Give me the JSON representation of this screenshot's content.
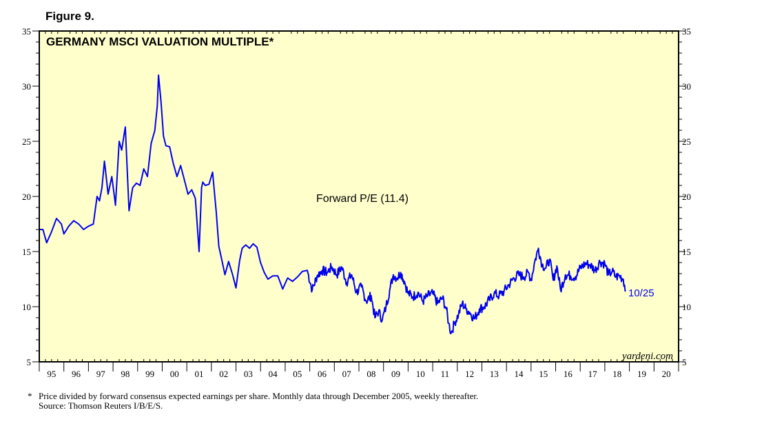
{
  "figure_label": "Figure 9.",
  "footnote": {
    "marker": "*",
    "line1": "Price divided by forward consensus expected earnings per share. Monthly data through December 2005, weekly thereafter.",
    "line2": "Source: Thomson Reuters I/B/E/S."
  },
  "colors": {
    "plot_background": "#ffffcc",
    "series": "#0000ee",
    "frame": "#000000"
  },
  "chart_data": {
    "type": "line",
    "title": "GERMANY MSCI VALUATION MULTIPLE*",
    "series_label": "Forward P/E (11.4)",
    "end_label": "10/25",
    "watermark": "yardeni.com",
    "ylim": [
      5,
      35
    ],
    "y_ticks": [
      5,
      10,
      15,
      20,
      25,
      30,
      35
    ],
    "x_range": [
      1995,
      2021
    ],
    "x_tick_labels": [
      "95",
      "96",
      "97",
      "98",
      "99",
      "00",
      "01",
      "02",
      "03",
      "04",
      "05",
      "06",
      "07",
      "08",
      "09",
      "10",
      "11",
      "12",
      "13",
      "14",
      "15",
      "16",
      "17",
      "18",
      "19",
      "20"
    ],
    "series": [
      {
        "name": "Forward P/E",
        "x": [
          1995.0,
          1995.15,
          1995.3,
          1995.5,
          1995.7,
          1995.9,
          1996.0,
          1996.2,
          1996.4,
          1996.6,
          1996.8,
          1997.0,
          1997.2,
          1997.35,
          1997.45,
          1997.55,
          1997.65,
          1997.8,
          1997.95,
          1998.1,
          1998.25,
          1998.35,
          1998.5,
          1998.65,
          1998.8,
          1998.95,
          1999.1,
          1999.25,
          1999.4,
          1999.55,
          1999.7,
          1999.8,
          1999.85,
          1999.95,
          2000.05,
          2000.15,
          2000.3,
          2000.45,
          2000.6,
          2000.75,
          2000.9,
          2001.05,
          2001.2,
          2001.35,
          2001.5,
          2001.6,
          2001.65,
          2001.75,
          2001.9,
          2002.05,
          2002.2,
          2002.3,
          2002.4,
          2002.55,
          2002.7,
          2002.85,
          2003.0,
          2003.15,
          2003.25,
          2003.4,
          2003.55,
          2003.7,
          2003.85,
          2004.0,
          2004.15,
          2004.3,
          2004.5,
          2004.7,
          2004.9,
          2005.1,
          2005.3,
          2005.5,
          2005.7,
          2005.9,
          2006.1,
          2006.3,
          2006.5,
          2006.7,
          2006.9,
          2007.1,
          2007.3,
          2007.5,
          2007.7,
          2007.9,
          2008.1,
          2008.3,
          2008.5,
          2008.65,
          2008.8,
          2008.95,
          2009.1,
          2009.25,
          2009.4,
          2009.55,
          2009.7,
          2009.85,
          2010.0,
          2010.2,
          2010.4,
          2010.6,
          2010.8,
          2011.0,
          2011.2,
          2011.4,
          2011.55,
          2011.65,
          2011.75,
          2011.9,
          2012.05,
          2012.2,
          2012.35,
          2012.5,
          2012.7,
          2012.9,
          2013.1,
          2013.3,
          2013.5,
          2013.7,
          2013.9,
          2014.1,
          2014.3,
          2014.5,
          2014.7,
          2014.9,
          2015.0,
          2015.15,
          2015.3,
          2015.45,
          2015.6,
          2015.75,
          2015.9,
          2016.05,
          2016.2,
          2016.4,
          2016.6,
          2016.8,
          2017.0,
          2017.2,
          2017.4,
          2017.6,
          2017.8,
          2018.0,
          2018.15,
          2018.3,
          2018.45,
          2018.6,
          2018.75,
          2018.85
        ],
        "values": [
          17.0,
          17.0,
          15.8,
          16.8,
          18.0,
          17.5,
          16.6,
          17.3,
          17.8,
          17.5,
          17.0,
          17.3,
          17.5,
          20.0,
          19.6,
          20.8,
          23.2,
          20.2,
          21.8,
          19.2,
          25.0,
          24.2,
          26.3,
          18.7,
          20.8,
          21.2,
          21.0,
          22.5,
          21.8,
          24.8,
          26.0,
          28.2,
          31.0,
          28.6,
          25.5,
          24.6,
          24.5,
          23.0,
          21.8,
          22.8,
          21.5,
          20.2,
          20.6,
          19.8,
          15.0,
          20.8,
          21.3,
          21.0,
          21.1,
          22.2,
          18.5,
          15.5,
          14.5,
          12.9,
          14.1,
          13.0,
          11.7,
          14.2,
          15.3,
          15.6,
          15.3,
          15.7,
          15.4,
          14.0,
          13.1,
          12.5,
          12.8,
          12.8,
          11.6,
          12.6,
          12.3,
          12.7,
          13.2,
          13.3,
          11.5,
          12.8,
          13.3,
          13.1,
          13.6,
          12.9,
          13.6,
          12.2,
          12.9,
          11.3,
          11.8,
          10.5,
          11.0,
          9.0,
          9.6,
          8.8,
          10.0,
          11.5,
          12.9,
          12.6,
          13.1,
          12.3,
          11.2,
          10.9,
          11.3,
          10.5,
          11.0,
          11.2,
          10.3,
          10.8,
          9.8,
          8.5,
          7.6,
          8.6,
          9.3,
          10.3,
          9.8,
          9.5,
          8.9,
          9.8,
          10.0,
          10.6,
          11.2,
          11.0,
          11.4,
          12.0,
          12.6,
          12.9,
          12.7,
          13.1,
          12.4,
          14.1,
          15.3,
          13.8,
          13.5,
          14.3,
          12.4,
          13.7,
          11.5,
          12.9,
          12.8,
          12.7,
          13.5,
          13.9,
          13.8,
          13.3,
          14.1,
          13.9,
          12.9,
          13.2,
          12.7,
          12.8,
          12.5,
          11.4
        ]
      }
    ]
  }
}
